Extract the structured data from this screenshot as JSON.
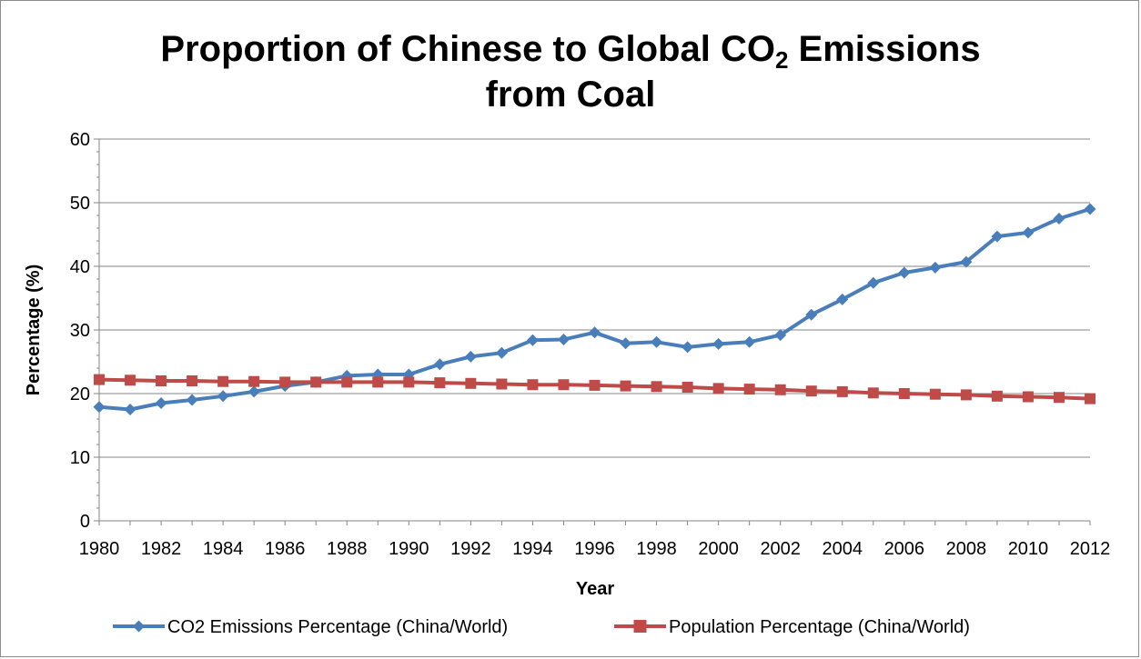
{
  "chart_data": {
    "type": "line",
    "title_main": "Proportion of Chinese to Global CO",
    "title_sub": "2",
    "title_end": " Emissions",
    "title_line2": "from Coal",
    "xlabel": "Year",
    "ylabel": "Percentage (%)",
    "ylim": [
      0,
      60
    ],
    "yticks": [
      "0",
      "10",
      "20",
      "30",
      "40",
      "50",
      "60"
    ],
    "x": [
      1980,
      1981,
      1982,
      1983,
      1984,
      1985,
      1986,
      1987,
      1988,
      1989,
      1990,
      1991,
      1992,
      1993,
      1994,
      1995,
      1996,
      1997,
      1998,
      1999,
      2000,
      2001,
      2002,
      2003,
      2004,
      2005,
      2006,
      2007,
      2008,
      2009,
      2010,
      2011,
      2012
    ],
    "xtick_labels": [
      "1980",
      "1982",
      "1984",
      "1986",
      "1988",
      "1990",
      "1992",
      "1994",
      "1996",
      "1998",
      "2000",
      "2002",
      "2004",
      "2006",
      "2008",
      "2010",
      "2012"
    ],
    "grid": true,
    "legend_position": "bottom",
    "series": [
      {
        "name": "CO2 Emissions Percentage (China/World)",
        "color": "#4a7ebb",
        "marker": "diamond",
        "values": [
          17.9,
          17.5,
          18.5,
          19.0,
          19.6,
          20.3,
          21.2,
          21.8,
          22.8,
          23.0,
          23.0,
          24.6,
          25.8,
          26.4,
          28.4,
          28.5,
          29.6,
          27.9,
          28.1,
          27.3,
          27.8,
          28.1,
          29.2,
          32.4,
          34.8,
          37.4,
          39.0,
          39.8,
          40.7,
          44.7,
          45.3,
          47.5,
          49.0
        ]
      },
      {
        "name": "Population Percentage (China/World)",
        "color": "#be4b48",
        "marker": "square",
        "values": [
          22.2,
          22.1,
          22.0,
          22.0,
          21.9,
          21.9,
          21.8,
          21.8,
          21.8,
          21.8,
          21.8,
          21.7,
          21.6,
          21.5,
          21.4,
          21.4,
          21.3,
          21.2,
          21.1,
          21.0,
          20.8,
          20.7,
          20.6,
          20.4,
          20.3,
          20.1,
          20.0,
          19.9,
          19.8,
          19.6,
          19.5,
          19.4,
          19.2
        ]
      }
    ]
  }
}
